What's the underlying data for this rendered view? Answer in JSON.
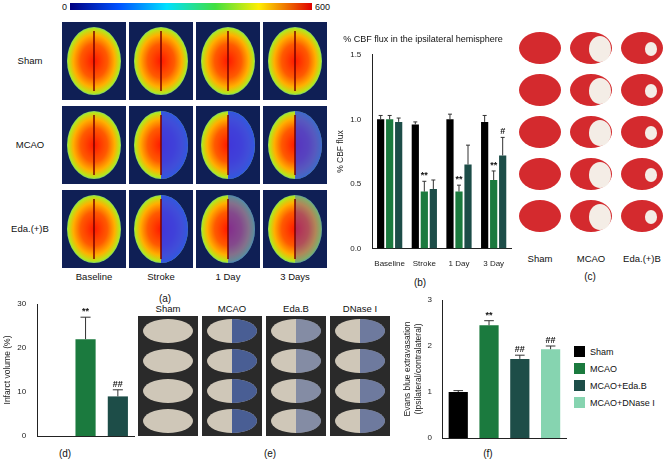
{
  "panel_labels": [
    "(a)",
    "(b)",
    "(c)",
    "(d)",
    "(e)",
    "(f)"
  ],
  "images": {
    "a": {
      "rows": [
        "Sham",
        "MCAO",
        "Eda.(+)B"
      ],
      "columns": [
        "Baseline",
        "Stroke",
        "1 Day",
        "3 Days"
      ],
      "colorbar": {
        "range": [
          0,
          600
        ],
        "ticks": [
          0,
          600
        ]
      }
    },
    "c": {
      "columns": [
        "Sham",
        "MCAO",
        "Eda.(+)B"
      ]
    },
    "e": {
      "columns": [
        "Sham",
        "MCAO",
        "Eda.B",
        "DNase I"
      ]
    }
  },
  "legend": [
    {
      "name": "Sham",
      "color": "#000000"
    },
    {
      "name": "MCAO",
      "color": "#1b7a3e"
    },
    {
      "name": "MCAO+Eda.B",
      "color": "#1d4d48"
    },
    {
      "name": "MCAO+DNase I",
      "color": "#86d4b0"
    }
  ],
  "chart_data": [
    {
      "type": "bar",
      "title": "% CBF flux in the ipsilateral hemisphere",
      "y_label": "% CBF flux",
      "categories": [
        "Baseline",
        "Stroke",
        "1 Day",
        "3 Day"
      ],
      "series": [
        {
          "name": "Sham",
          "color": "#000000",
          "values": [
            1.0,
            0.96,
            1.0,
            0.98
          ],
          "errors": [
            0.03,
            0.02,
            0.04,
            0.05
          ],
          "annotations": [
            null,
            null,
            null,
            null
          ]
        },
        {
          "name": "MCAO",
          "color": "#1b7a3e",
          "values": [
            1.0,
            0.44,
            0.44,
            0.53
          ],
          "errors": [
            0.03,
            0.08,
            0.05,
            0.07
          ],
          "annotations": [
            null,
            "**",
            "**",
            "**"
          ]
        },
        {
          "name": "MCAO+Eda.B",
          "color": "#1d4d48",
          "values": [
            0.98,
            0.46,
            0.65,
            0.72
          ],
          "errors": [
            0.03,
            0.07,
            0.15,
            0.14
          ],
          "annotations": [
            null,
            null,
            null,
            "#"
          ]
        }
      ],
      "ylim": [
        0,
        1.5
      ],
      "yticks": [
        {
          "value": 0,
          "label": "0.0"
        },
        {
          "value": 0.5,
          "label": "0.5"
        },
        {
          "value": 1,
          "label": "1.0"
        },
        {
          "value": 1.5,
          "label": "1.5"
        }
      ],
      "grid": false
    },
    {
      "type": "bar",
      "y_label": "Infarct volume (%)",
      "categories": [
        null,
        null,
        null
      ],
      "values": [
        0,
        22,
        9
      ],
      "errors": [
        0,
        5,
        1.5
      ],
      "annotations": [
        null,
        "**",
        "##"
      ],
      "colors": [
        "#000000",
        "#1b7a3e",
        "#1d4d48"
      ],
      "ylim": [
        0,
        30
      ],
      "yticks": [
        0,
        10,
        20,
        30
      ],
      "grid": false,
      "tick_labels": "y"
    },
    {
      "type": "bar",
      "y_label": [
        "Evans blue extravasation",
        "(Ipsilateral/contralateral)"
      ],
      "categories": [
        null,
        null,
        null,
        null
      ],
      "values": [
        1.0,
        2.45,
        1.72,
        1.93
      ],
      "errors": [
        0.03,
        0.1,
        0.08,
        0.07
      ],
      "annotations": [
        null,
        "**",
        "##",
        "##"
      ],
      "colors": [
        "#000000",
        "#1b7a3e",
        "#1d4d48",
        "#86d4b0"
      ],
      "ylim": [
        0,
        3
      ],
      "yticks": [
        0,
        1,
        2,
        3
      ],
      "grid": false,
      "tick_labels": "y"
    }
  ]
}
